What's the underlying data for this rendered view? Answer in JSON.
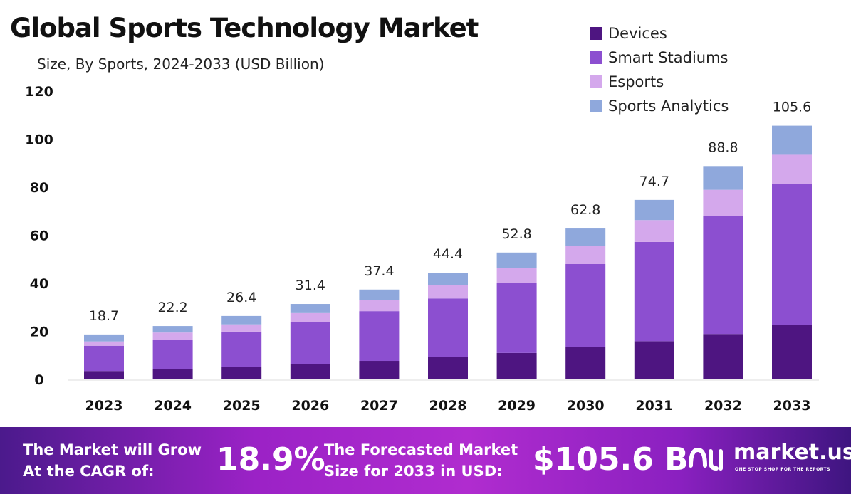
{
  "chart_data": {
    "type": "bar",
    "stacked": true,
    "title": "Global Sports Technology Market",
    "subtitle": "Size, By Sports, 2024-2033 (USD Billion)",
    "categories": [
      "2023",
      "2024",
      "2025",
      "2026",
      "2027",
      "2028",
      "2029",
      "2030",
      "2031",
      "2032",
      "2033"
    ],
    "totals": [
      "18.7",
      "22.2",
      "26.4",
      "31.4",
      "37.4",
      "44.4",
      "52.8",
      "62.8",
      "74.7",
      "88.8",
      "105.6"
    ],
    "series": [
      {
        "name": "Devices",
        "color": "#4e1581",
        "values": [
          3.5,
          4.4,
          5.1,
          6.3,
          7.7,
          9.3,
          11.0,
          13.4,
          15.9,
          18.9,
          22.8
        ]
      },
      {
        "name": "Smart Stadiums",
        "color": "#8c4fd0",
        "values": [
          10.5,
          12.1,
          14.8,
          17.5,
          20.7,
          24.4,
          29.2,
          34.6,
          41.3,
          49.2,
          58.4
        ]
      },
      {
        "name": "Esports",
        "color": "#d4a8ec",
        "values": [
          1.8,
          3.0,
          3.0,
          3.8,
          4.5,
          5.5,
          6.3,
          7.5,
          9.1,
          10.8,
          12.3
        ]
      },
      {
        "name": "Sports Analytics",
        "color": "#8fa8dc",
        "values": [
          2.9,
          2.7,
          3.5,
          3.8,
          4.5,
          5.2,
          6.3,
          7.3,
          8.4,
          9.9,
          12.1
        ]
      }
    ],
    "yticks": [
      "0",
      "20",
      "40",
      "60",
      "80",
      "100",
      "120"
    ],
    "ylim": [
      0,
      120
    ],
    "grid": false,
    "legend": "top-right"
  },
  "footer": {
    "cagr_label_1": "The Market will Grow",
    "cagr_label_2": "At the CAGR of:",
    "cagr": "18.9%",
    "forecast_label_1": "The Forecasted Market",
    "forecast_label_2": "Size for 2033 in USD:",
    "forecast": "$105.6 B",
    "logo": "market.us",
    "logo_tagline": "ONE STOP SHOP FOR THE REPORTS"
  }
}
